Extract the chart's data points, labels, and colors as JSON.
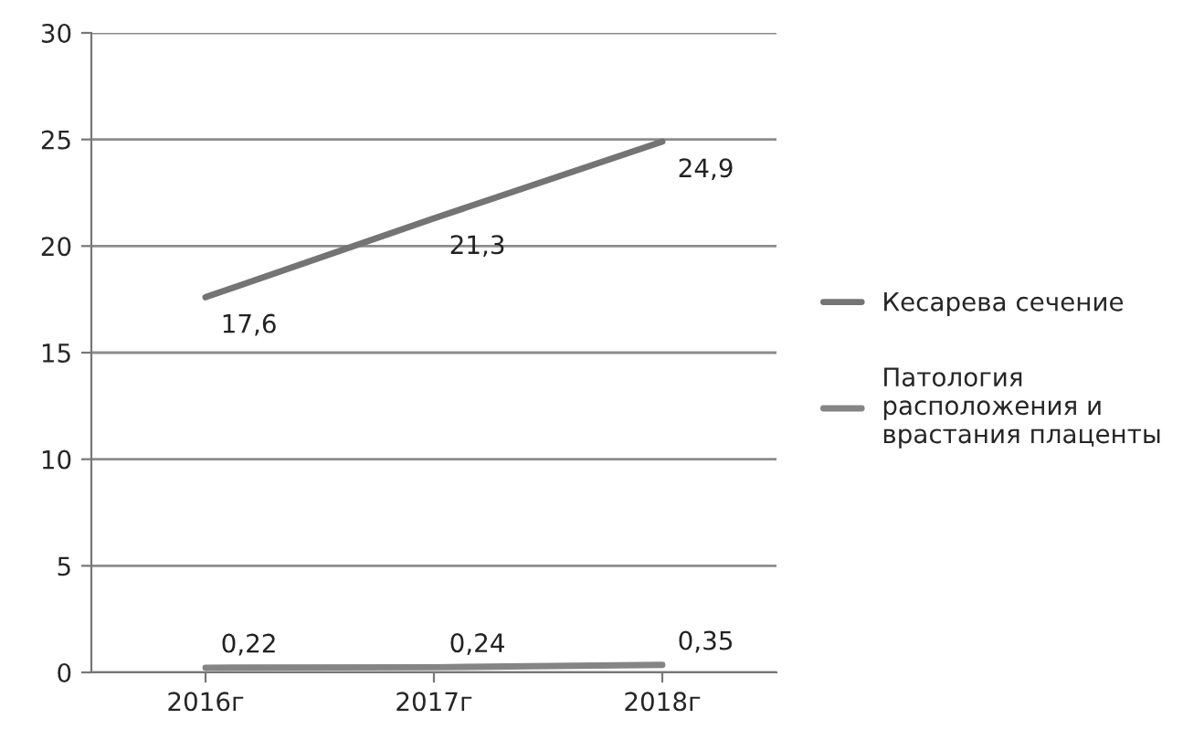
{
  "chart_data": {
    "type": "line",
    "categories": [
      "2016г",
      "2017г",
      "2018г"
    ],
    "series": [
      {
        "name": "Кесарева сечение",
        "color": "#747474",
        "values": [
          17.6,
          21.3,
          24.9
        ],
        "value_labels": [
          "17,6",
          "21,3",
          "24,9"
        ]
      },
      {
        "name": "Патология расположения и врастания плаценты",
        "color": "#858585",
        "values": [
          0.22,
          0.24,
          0.35
        ],
        "value_labels": [
          "0,22",
          "0,24",
          "0,35"
        ]
      }
    ],
    "ylim": [
      0,
      30
    ],
    "yticks": [
      0,
      5,
      10,
      15,
      20,
      25,
      30
    ],
    "grid": "y",
    "legend": "right",
    "marker": "none",
    "line_style": "solid"
  }
}
